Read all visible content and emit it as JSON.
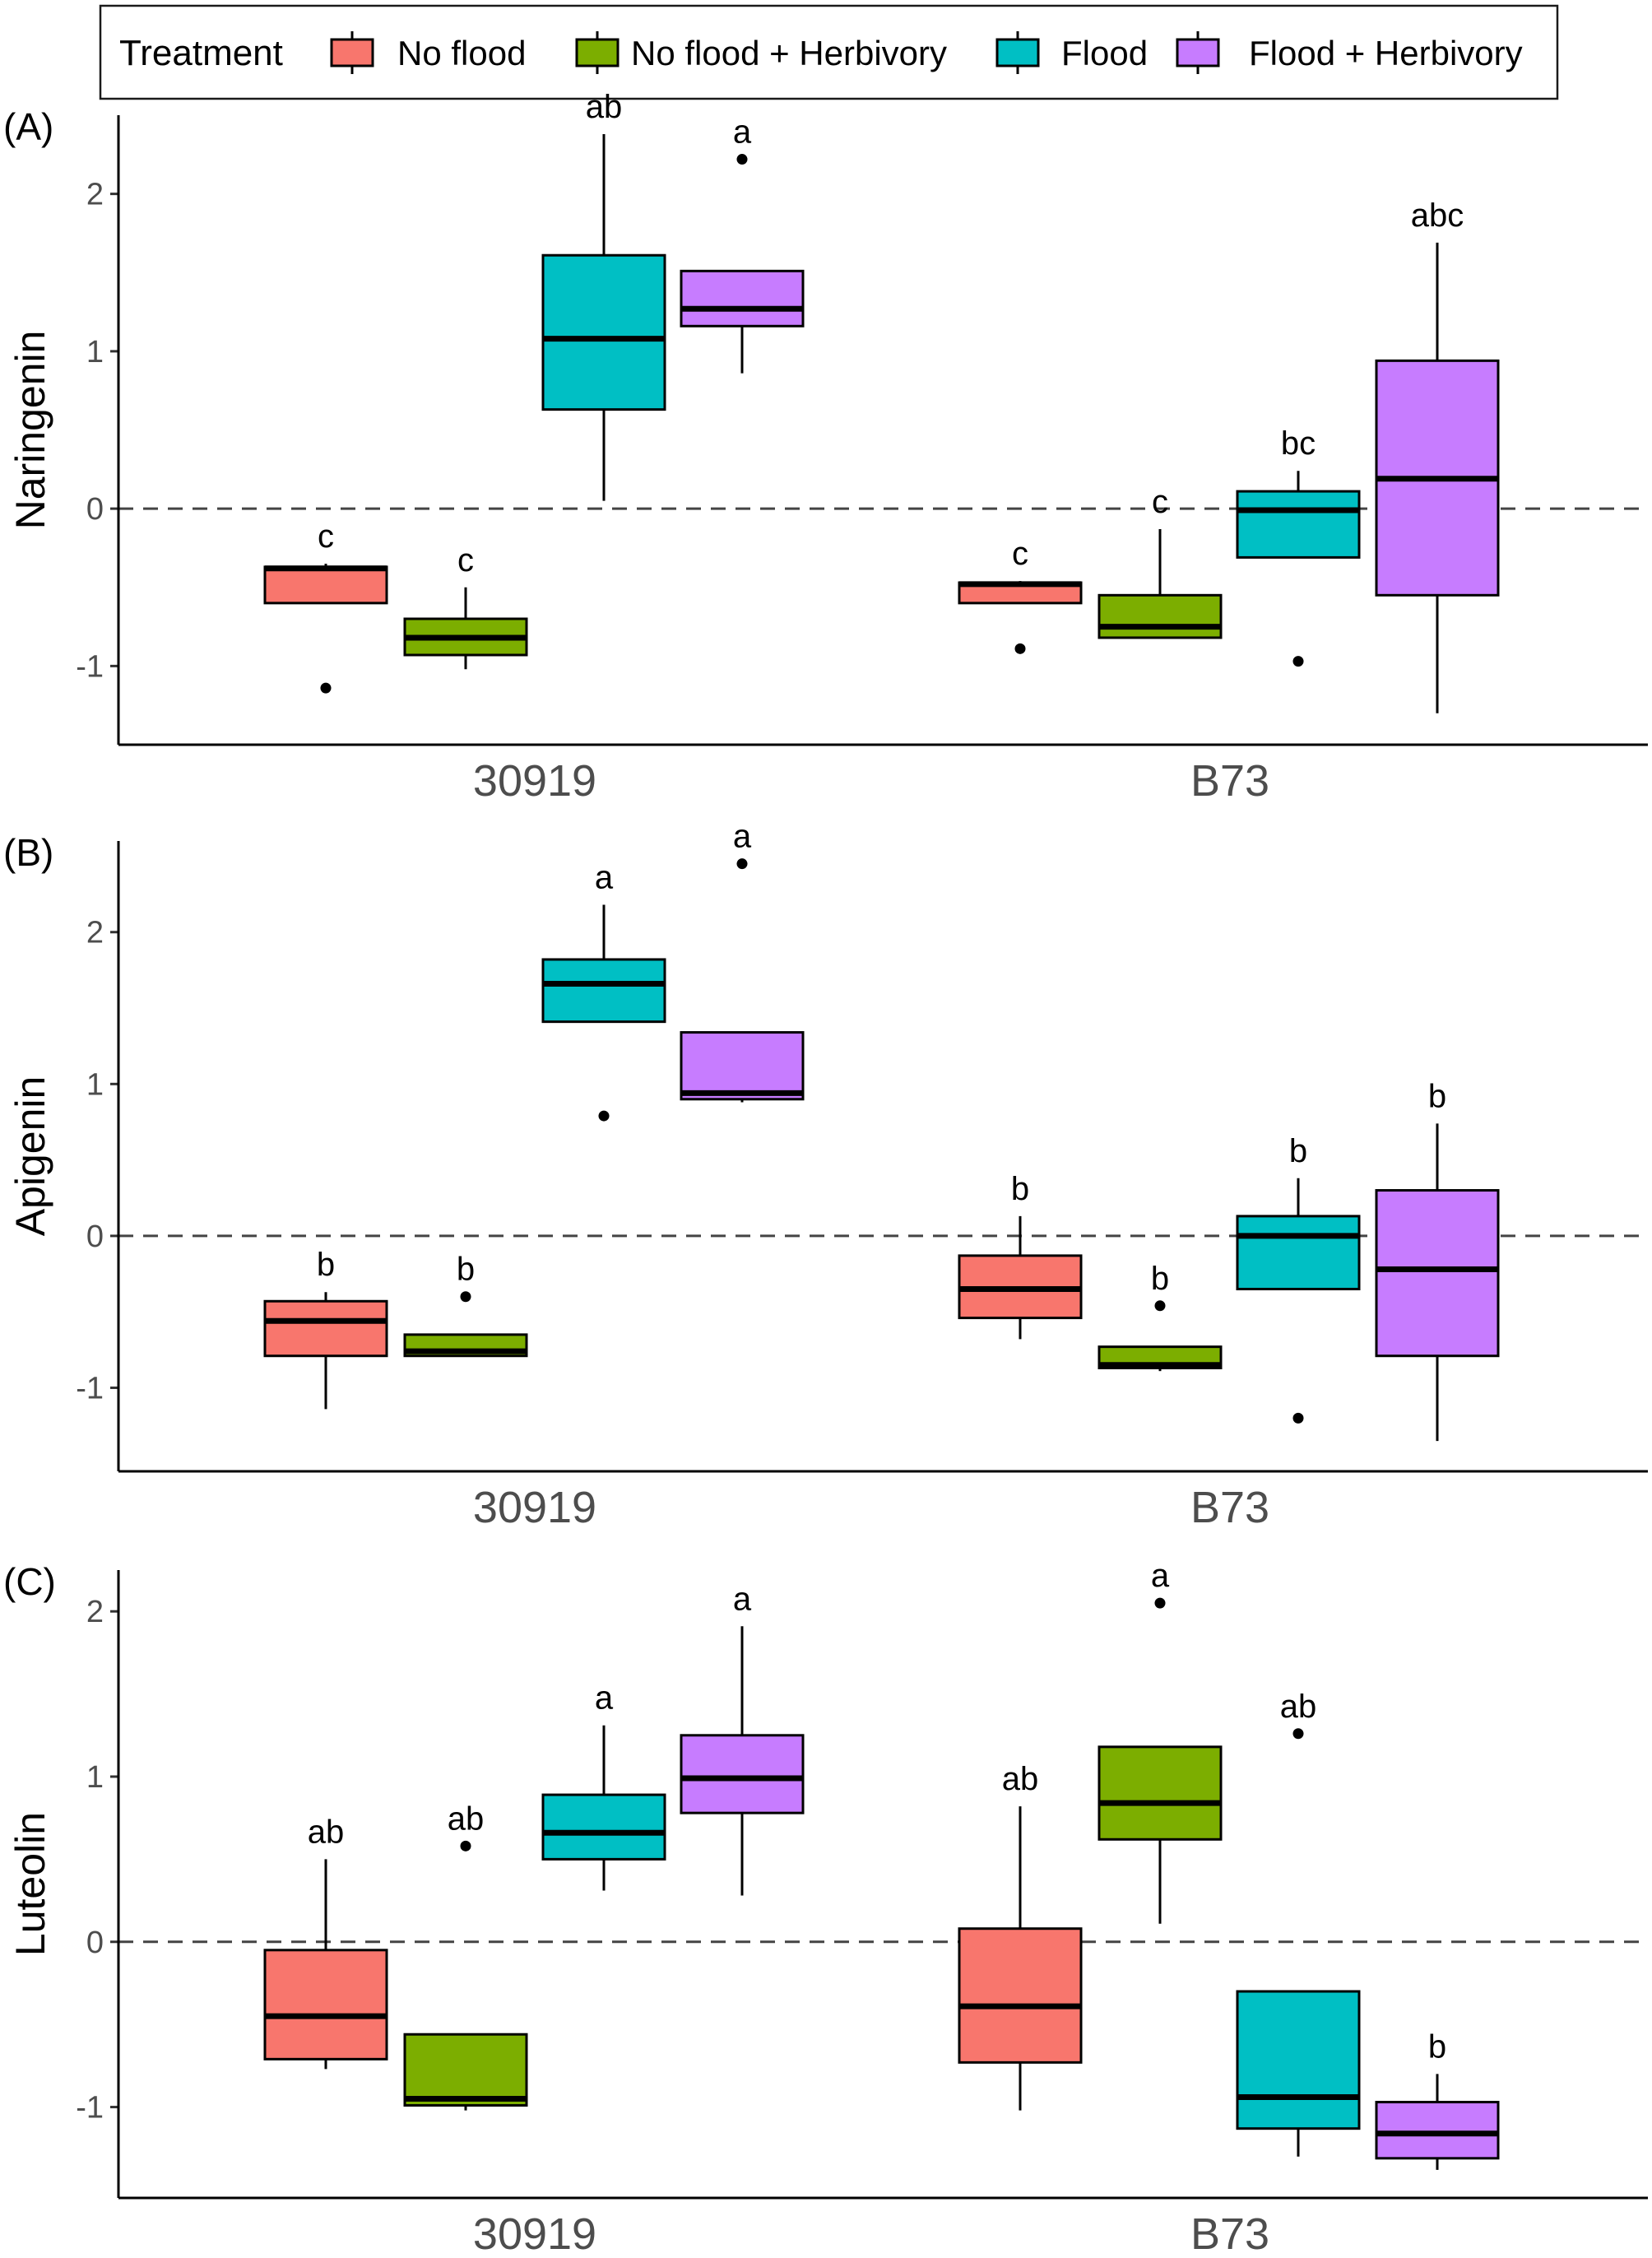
{
  "legend": {
    "title": "Treatment",
    "items": [
      {
        "label": "No flood",
        "color": "#F8766D"
      },
      {
        "label": "No flood + Herbivory",
        "color": "#7CAE00"
      },
      {
        "label": "Flood",
        "color": "#00BFC4"
      },
      {
        "label": "Flood + Herbivory",
        "color": "#C77CFF"
      }
    ]
  },
  "chart_data": [
    {
      "type": "box",
      "panel_label": "(A)",
      "ylabel": "Naringenin",
      "ylim": [
        -1.5,
        2.5
      ],
      "yticks": [
        -1,
        0,
        1,
        2
      ],
      "reference_line": 0,
      "categories": [
        "30919",
        "B73"
      ],
      "series": [
        {
          "name": "No flood",
          "boxes": [
            {
              "q1": -0.6,
              "median": -0.38,
              "q3": -0.37,
              "min": -0.6,
              "max": -0.35,
              "outliers": [
                -1.14
              ],
              "letter": "c"
            },
            {
              "q1": -0.6,
              "median": -0.48,
              "q3": -0.47,
              "min": -0.6,
              "max": -0.46,
              "outliers": [
                -0.89
              ],
              "letter": "c"
            }
          ]
        },
        {
          "name": "No flood + Herbivory",
          "boxes": [
            {
              "q1": -0.93,
              "median": -0.82,
              "q3": -0.7,
              "min": -1.02,
              "max": -0.5,
              "outliers": [],
              "letter": "c"
            },
            {
              "q1": -0.82,
              "median": -0.75,
              "q3": -0.55,
              "min": -0.82,
              "max": -0.13,
              "outliers": [],
              "letter": "c"
            }
          ]
        },
        {
          "name": "Flood",
          "boxes": [
            {
              "q1": 0.63,
              "median": 1.08,
              "q3": 1.61,
              "min": 0.05,
              "max": 2.38,
              "outliers": [],
              "letter": "ab"
            },
            {
              "q1": -0.31,
              "median": -0.01,
              "q3": 0.11,
              "min": -0.31,
              "max": 0.24,
              "outliers": [
                -0.97
              ],
              "letter": "bc"
            }
          ]
        },
        {
          "name": "Flood + Herbivory",
          "boxes": [
            {
              "q1": 1.16,
              "median": 1.27,
              "q3": 1.51,
              "min": 0.86,
              "max": 1.51,
              "outliers": [
                2.22
              ],
              "letter": "a"
            },
            {
              "q1": -0.55,
              "median": 0.19,
              "q3": 0.94,
              "min": -1.3,
              "max": 1.69,
              "outliers": [],
              "letter": "abc"
            }
          ]
        }
      ]
    },
    {
      "type": "box",
      "panel_label": "(B)",
      "ylabel": "Apigenin",
      "ylim": [
        -1.55,
        2.6
      ],
      "yticks": [
        -1,
        0,
        1,
        2
      ],
      "reference_line": 0,
      "categories": [
        "30919",
        "B73"
      ],
      "series": [
        {
          "name": "No flood",
          "boxes": [
            {
              "q1": -0.79,
              "median": -0.56,
              "q3": -0.43,
              "min": -1.14,
              "max": -0.37,
              "outliers": [],
              "letter": "b"
            },
            {
              "q1": -0.54,
              "median": -0.35,
              "q3": -0.13,
              "min": -0.68,
              "max": 0.13,
              "outliers": [],
              "letter": "b"
            }
          ]
        },
        {
          "name": "No flood + Herbivory",
          "boxes": [
            {
              "q1": -0.79,
              "median": -0.76,
              "q3": -0.65,
              "min": -0.79,
              "max": -0.65,
              "outliers": [
                -0.4
              ],
              "letter": "b"
            },
            {
              "q1": -0.87,
              "median": -0.85,
              "q3": -0.73,
              "min": -0.89,
              "max": -0.73,
              "outliers": [
                -0.46
              ],
              "letter": "b"
            }
          ]
        },
        {
          "name": "Flood",
          "boxes": [
            {
              "q1": 1.41,
              "median": 1.66,
              "q3": 1.82,
              "min": 1.41,
              "max": 2.18,
              "outliers": [
                0.79
              ],
              "letter": "a"
            },
            {
              "q1": -0.35,
              "median": 0.0,
              "q3": 0.13,
              "min": -0.35,
              "max": 0.38,
              "outliers": [
                -1.2
              ],
              "letter": "b"
            }
          ]
        },
        {
          "name": "Flood + Herbivory",
          "boxes": [
            {
              "q1": 0.9,
              "median": 0.94,
              "q3": 1.34,
              "min": 0.88,
              "max": 1.34,
              "outliers": [
                2.45
              ],
              "letter": "a"
            },
            {
              "q1": -0.79,
              "median": -0.22,
              "q3": 0.3,
              "min": -1.35,
              "max": 0.74,
              "outliers": [],
              "letter": "b"
            }
          ]
        }
      ]
    },
    {
      "type": "box",
      "panel_label": "(C)",
      "ylabel": "Luteolin",
      "ylim": [
        -1.55,
        2.25
      ],
      "yticks": [
        -1,
        0,
        1,
        2
      ],
      "reference_line": 0,
      "categories": [
        "30919",
        "B73"
      ],
      "series": [
        {
          "name": "No flood",
          "boxes": [
            {
              "q1": -0.71,
              "median": -0.45,
              "q3": -0.05,
              "min": -0.77,
              "max": 0.5,
              "outliers": [],
              "letter": "ab"
            },
            {
              "q1": -0.73,
              "median": -0.39,
              "q3": 0.08,
              "min": -1.02,
              "max": 0.82,
              "outliers": [],
              "letter": "ab"
            }
          ]
        },
        {
          "name": "No flood + Herbivory",
          "boxes": [
            {
              "q1": -0.99,
              "median": -0.95,
              "q3": -0.56,
              "min": -1.02,
              "max": -0.56,
              "outliers": [
                0.58
              ],
              "letter": "ab"
            },
            {
              "q1": 0.62,
              "median": 0.84,
              "q3": 1.18,
              "min": 0.11,
              "max": 1.18,
              "outliers": [
                2.05
              ],
              "letter": "a"
            }
          ]
        },
        {
          "name": "Flood",
          "boxes": [
            {
              "q1": 0.5,
              "median": 0.66,
              "q3": 0.89,
              "min": 0.31,
              "max": 1.31,
              "outliers": [],
              "letter": "a"
            },
            {
              "q1": -1.13,
              "median": -0.94,
              "q3": -0.3,
              "min": -1.3,
              "max": -0.3,
              "outliers": [
                1.26
              ],
              "letter": "ab"
            }
          ]
        },
        {
          "name": "Flood + Herbivory",
          "boxes": [
            {
              "q1": 0.78,
              "median": 0.99,
              "q3": 1.25,
              "min": 0.28,
              "max": 1.91,
              "outliers": [],
              "letter": "a"
            },
            {
              "q1": -1.31,
              "median": -1.16,
              "q3": -0.97,
              "min": -1.38,
              "max": -0.8,
              "outliers": [],
              "letter": "b"
            }
          ]
        }
      ]
    }
  ]
}
